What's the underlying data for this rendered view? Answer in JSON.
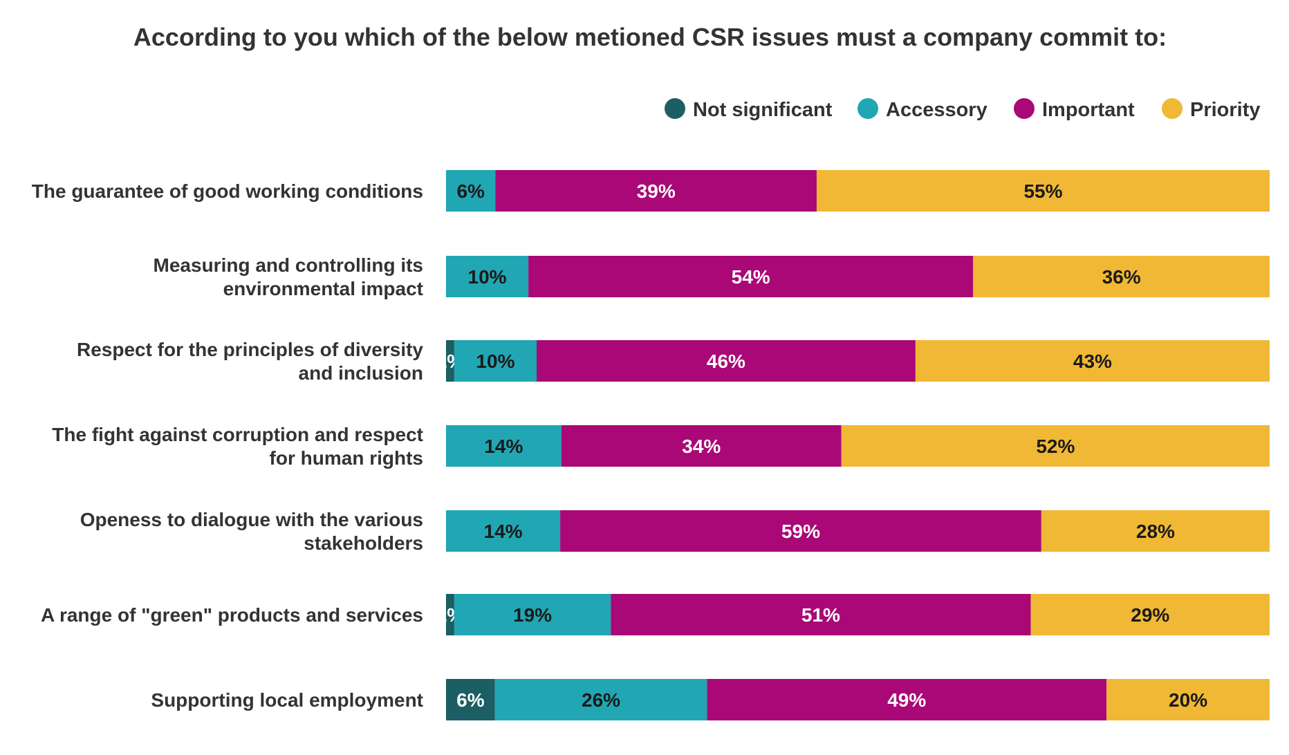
{
  "chart_data": {
    "type": "bar",
    "orientation": "horizontal",
    "stacked": true,
    "title": "According to you which of the below metioned CSR issues must a company commit to:",
    "xlabel": "",
    "ylabel": "",
    "xlim": [
      0,
      100
    ],
    "grid": false,
    "legend_position": "top-right",
    "categories": [
      "The guarantee of good working conditions",
      "Measuring and controlling its environmental impact",
      "Respect for the principles of diversity and inclusion",
      "The fight against corruption and respect for human rights",
      "Openess to dialogue with the various stakeholders",
      "A range of \"green\" products and services",
      "Supporting local employment"
    ],
    "series": [
      {
        "name": "Not significant",
        "color": "#1b5e63",
        "label_color": "#ffffff",
        "values": [
          0,
          0,
          1,
          0,
          0,
          1,
          6
        ]
      },
      {
        "name": "Accessory",
        "color": "#21a6b3",
        "label_color": "#1a1a1a",
        "values": [
          6,
          10,
          10,
          14,
          14,
          19,
          26
        ]
      },
      {
        "name": "Important",
        "color": "#a90876",
        "label_color": "#ffffff",
        "values": [
          39,
          54,
          46,
          34,
          59,
          51,
          49
        ]
      },
      {
        "name": "Priority",
        "color": "#f0b834",
        "label_color": "#1a1a1a",
        "values": [
          55,
          36,
          43,
          52,
          28,
          29,
          20
        ]
      }
    ],
    "value_suffix": "%"
  }
}
